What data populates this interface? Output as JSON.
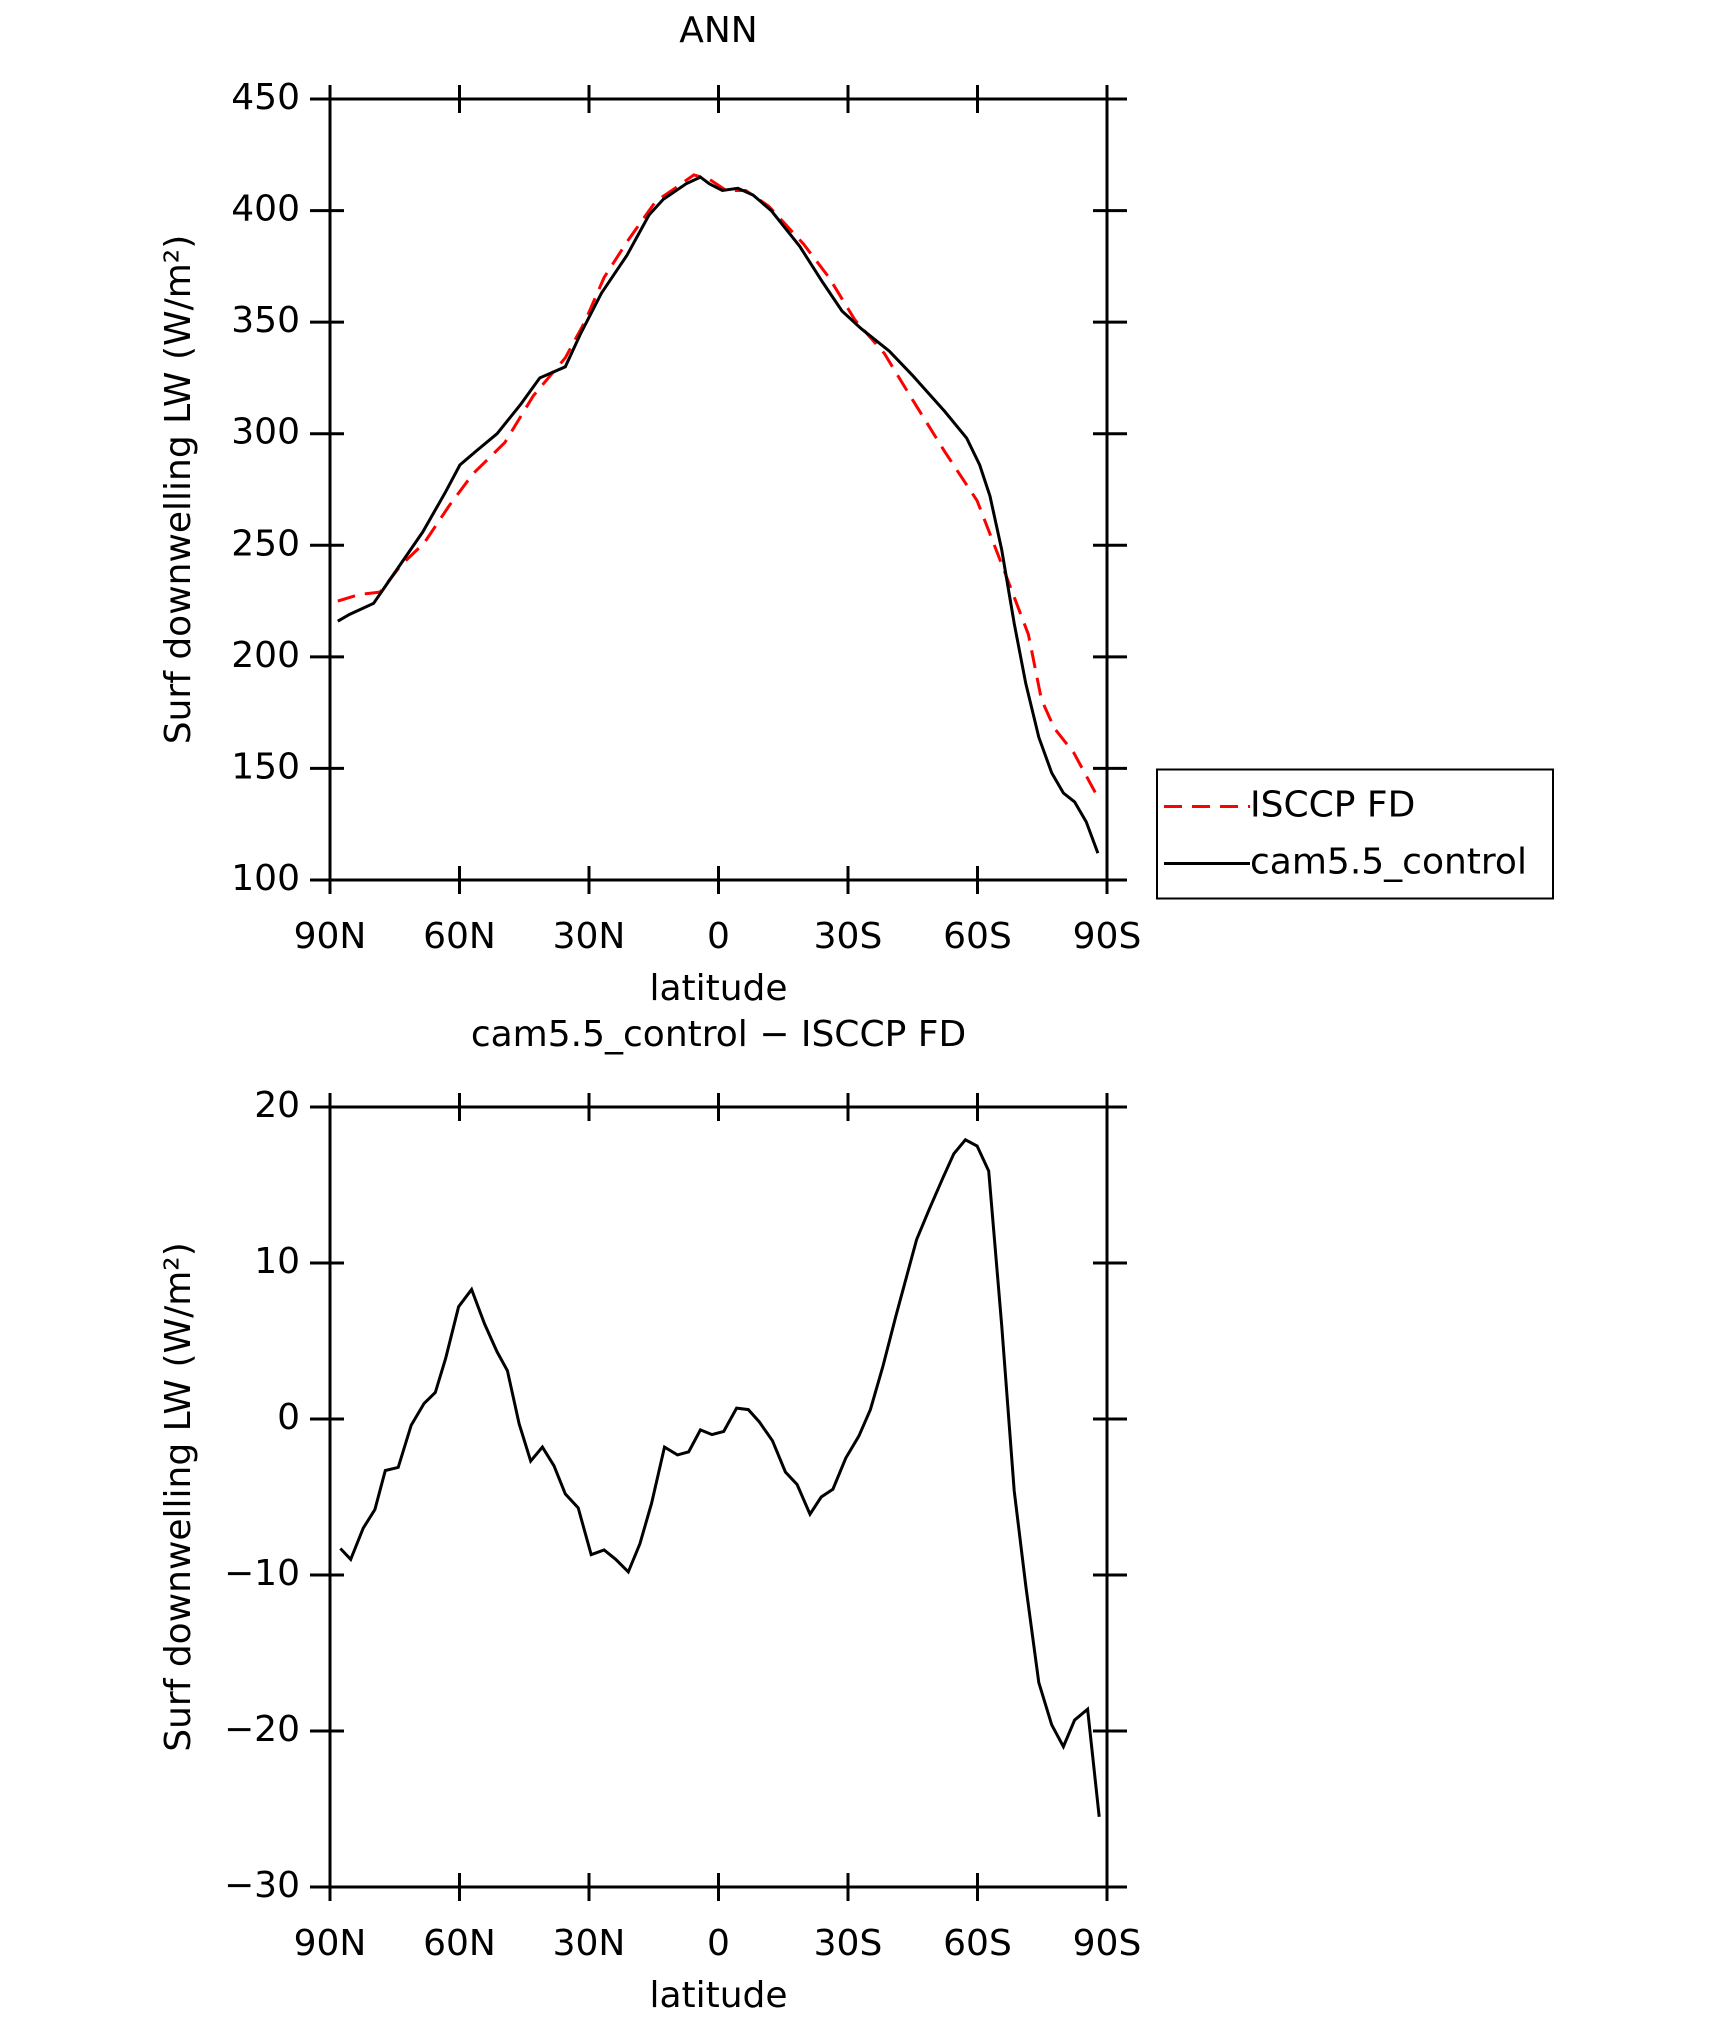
{
  "chart_data": [
    {
      "type": "line",
      "title": "ANN",
      "xlabel": "latitude",
      "ylabel": "Surf downwelling LW (W/m²)",
      "xlim": [
        90,
        -90
      ],
      "ylim": [
        100,
        450
      ],
      "xticks": [
        {
          "value": 90,
          "label": "90N"
        },
        {
          "value": 60,
          "label": "60N"
        },
        {
          "value": 30,
          "label": "30N"
        },
        0,
        {
          "value": -30,
          "label": "30S"
        },
        {
          "value": -60,
          "label": "60S"
        },
        {
          "value": -90,
          "label": "90S"
        }
      ],
      "yticks": [
        100,
        150,
        200,
        250,
        300,
        350,
        400,
        450
      ],
      "legend": "right",
      "series": [
        {
          "name": "ISCCP FD",
          "color": "#ff0000",
          "linestyle": "dashed",
          "x": [
            88.2,
            83.1,
            78.4,
            73.6,
            68.2,
            62.3,
            56.9,
            49.5,
            42.9,
            35.5,
            31.0,
            26.5,
            21.2,
            14.6,
            10.1,
            5.7,
            2.1,
            -1.8,
            -6.3,
            -11.6,
            -19.7,
            -25.6,
            -31.6,
            -38.4,
            -45.0,
            -52.4,
            -59.9,
            -65.9,
            -71.8,
            -74.8,
            -77.8,
            -82.3,
            -87.9
          ],
          "values": [
            225,
            228,
            229,
            241,
            251,
            268,
            282,
            296,
            317,
            334,
            350,
            370,
            386,
            404,
            410,
            416,
            414,
            409,
            409,
            402,
            385,
            370,
            351,
            336,
            315,
            292,
            270,
            240,
            210,
            181,
            168,
            157,
            137
          ]
        },
        {
          "name": "cam5.5_control",
          "color": "#000000",
          "linestyle": "solid",
          "x": [
            88.2,
            85.5,
            79.9,
            74.2,
            68.5,
            63.2,
            59.9,
            56.3,
            51.3,
            45.9,
            41.4,
            35.5,
            31.9,
            27.1,
            21.2,
            16.1,
            12.8,
            7.5,
            4.2,
            2.1,
            -0.9,
            -4.5,
            -8.0,
            -12.2,
            -18.8,
            -24.1,
            -28.6,
            -33.1,
            -39.6,
            -45.0,
            -52.4,
            -57.5,
            -60.5,
            -62.9,
            -65.6,
            -68.5,
            -71.2,
            -74.2,
            -77.2,
            -79.9,
            -82.5,
            -85.2,
            -87.9
          ],
          "values": [
            216,
            219,
            224,
            240,
            256,
            274,
            286,
            292,
            300,
            313,
            325,
            330,
            345,
            363,
            380,
            398,
            405,
            412,
            415,
            412,
            409,
            410,
            407,
            400,
            384,
            368,
            355,
            347,
            337,
            326,
            310,
            298,
            286,
            272,
            248,
            215,
            188,
            164,
            148,
            139,
            135,
            126,
            112
          ]
        }
      ]
    },
    {
      "type": "line",
      "title": "cam5.5_control − ISCCP FD",
      "xlabel": "latitude",
      "ylabel": "Surf downwelling LW (W/m²)",
      "xlim": [
        90,
        -90
      ],
      "ylim": [
        -30,
        20
      ],
      "xticks": [
        {
          "value": 90,
          "label": "90N"
        },
        {
          "value": 60,
          "label": "60N"
        },
        {
          "value": 30,
          "label": "30N"
        },
        0,
        {
          "value": -30,
          "label": "30S"
        },
        {
          "value": -60,
          "label": "60S"
        },
        {
          "value": -90,
          "label": "90S"
        }
      ],
      "yticks": [
        {
          "value": -30,
          "label": "−30"
        },
        {
          "value": -20,
          "label": "−20"
        },
        {
          "value": -10,
          "label": "−10"
        },
        0,
        10,
        20
      ],
      "series": [
        {
          "color": "#000000",
          "linestyle": "solid",
          "x": [
            87.6,
            85.2,
            82.3,
            79.6,
            77.2,
            74.2,
            71.2,
            68.2,
            65.6,
            63.2,
            60.2,
            57.2,
            54.2,
            51.3,
            48.9,
            46.2,
            43.5,
            40.8,
            38.1,
            35.5,
            32.5,
            29.5,
            26.5,
            23.8,
            20.9,
            18.2,
            15.5,
            12.5,
            9.5,
            6.9,
            4.2,
            1.5,
            -1.2,
            -4.2,
            -6.9,
            -9.5,
            -12.5,
            -15.5,
            -18.2,
            -21.2,
            -23.8,
            -26.5,
            -29.5,
            -32.5,
            -35.2,
            -38.1,
            -41.1,
            -45.9,
            -48.9,
            -51.9,
            -54.5,
            -57.2,
            -59.9,
            -62.6,
            -65.6,
            -68.5,
            -71.2,
            -74.2,
            -77.2,
            -79.9,
            -82.5,
            -85.5,
            -88.2
          ],
          "values": [
            -8.3,
            -9.0,
            -7.0,
            -5.8,
            -3.3,
            -3.1,
            -0.4,
            1.0,
            1.7,
            3.9,
            7.2,
            8.3,
            6.1,
            4.3,
            3.1,
            -0.3,
            -2.7,
            -1.8,
            -3.0,
            -4.8,
            -5.7,
            -8.7,
            -8.4,
            -9.0,
            -9.8,
            -8.0,
            -5.4,
            -1.8,
            -2.3,
            -2.1,
            -0.7,
            -1.0,
            -0.8,
            0.7,
            0.6,
            -0.2,
            -1.4,
            -3.4,
            -4.2,
            -6.1,
            -5.0,
            -4.5,
            -2.5,
            -1.1,
            0.6,
            3.4,
            6.6,
            11.5,
            13.5,
            15.4,
            17.0,
            17.9,
            17.5,
            15.9,
            6.0,
            -4.6,
            -10.7,
            -16.9,
            -19.6,
            -21.0,
            -19.3,
            -18.6,
            -25.5
          ]
        }
      ]
    }
  ]
}
